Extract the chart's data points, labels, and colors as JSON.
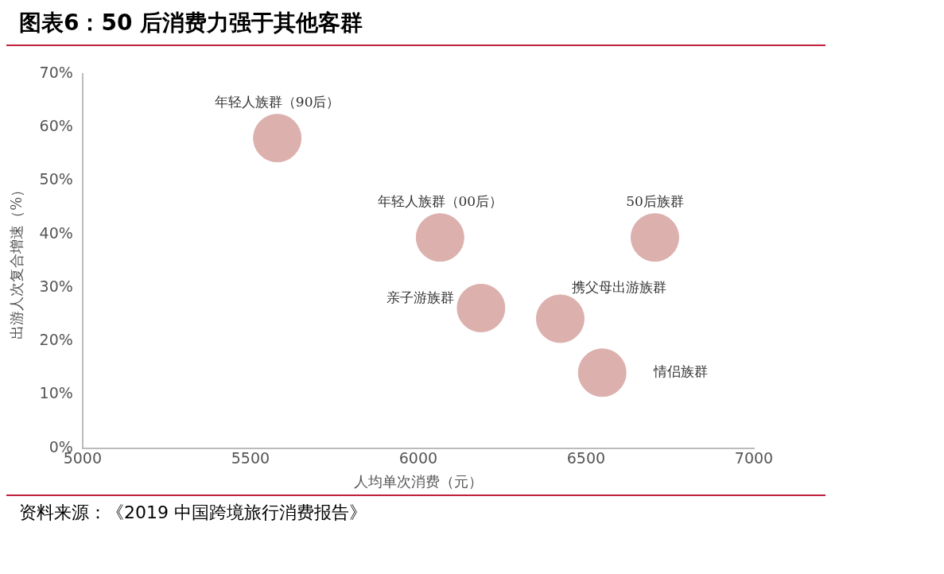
{
  "chart_data": {
    "type": "bubble",
    "title": "图表6：50 后消费力强于其他客群",
    "xlabel": "人均单次消费（元）",
    "ylabel": "出游人次复合增速（%）",
    "series": [
      {
        "name": "年轻人族群（90后）",
        "color": "#dcb0ad",
        "x": [
          5580
        ],
        "values": [
          58
        ],
        "sizes": [
          1
        ]
      },
      {
        "name": "年轻人族群（00后）",
        "color": "#dcb0ad",
        "x": [
          6065
        ],
        "values": [
          39.4
        ],
        "sizes": [
          1
        ]
      },
      {
        "name": "50后族群",
        "color": "#dcb0ad",
        "x": [
          6705
        ],
        "values": [
          39.4
        ],
        "sizes": [
          1
        ]
      },
      {
        "name": "亲子游族群",
        "color": "#dcb0ad",
        "x": [
          6187
        ],
        "values": [
          26.2
        ],
        "sizes": [
          1
        ]
      },
      {
        "name": "携父母出游族群",
        "color": "#dcb0ad",
        "x": [
          6423
        ],
        "values": [
          24.2
        ],
        "sizes": [
          1
        ]
      },
      {
        "name": "情侣族群",
        "color": "#dcb0ad",
        "x": [
          6548
        ],
        "values": [
          14.1
        ],
        "sizes": [
          1
        ]
      }
    ],
    "xlim": [
      5000,
      7000
    ],
    "xticks": [
      5000,
      5500,
      6000,
      6500,
      7000
    ],
    "ylim": [
      0,
      70
    ],
    "yticks": [
      {
        "value": 0,
        "label": "0%"
      },
      {
        "value": 10,
        "label": "10%"
      },
      {
        "value": 20,
        "label": "20%"
      },
      {
        "value": 30,
        "label": "30%"
      },
      {
        "value": 40,
        "label": "40%"
      },
      {
        "value": 50,
        "label": "50%"
      },
      {
        "value": 60,
        "label": "60%"
      },
      {
        "value": 70,
        "label": "70%"
      }
    ],
    "grid": false,
    "legend": false,
    "annotations": [
      "资料来源：《2019 中国跨境旅行消费报告》"
    ]
  }
}
